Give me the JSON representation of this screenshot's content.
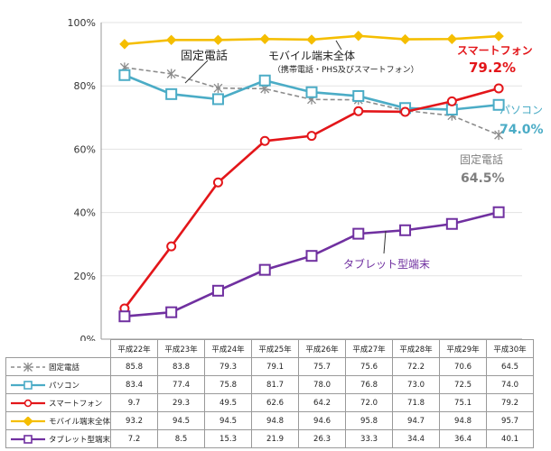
{
  "chart_data": {
    "type": "line",
    "categories": [
      "平成22年",
      "平成23年",
      "平成24年",
      "平成25年",
      "平成26年",
      "平成27年",
      "平成28年",
      "平成29年",
      "平成30年"
    ],
    "ylim": [
      0,
      100
    ],
    "yticks": [
      "0%",
      "20%",
      "40%",
      "60%",
      "80%",
      "100%"
    ],
    "grid": true,
    "series": [
      {
        "name": "固定電話",
        "color": "#8c8c8c",
        "marker": "asterisk",
        "dashed": true,
        "values": [
          85.8,
          83.8,
          79.3,
          79.1,
          75.7,
          75.6,
          72.2,
          70.6,
          64.5
        ]
      },
      {
        "name": "パソコン",
        "color": "#4bacc6",
        "marker": "square",
        "values": [
          83.4,
          77.4,
          75.8,
          81.7,
          78.0,
          76.8,
          73.0,
          72.5,
          74.0
        ]
      },
      {
        "name": "スマートフォン",
        "color": "#e3161a",
        "marker": "circle",
        "values": [
          9.7,
          29.3,
          49.5,
          62.6,
          64.2,
          72.0,
          71.8,
          75.1,
          79.2
        ]
      },
      {
        "name": "モバイル端末全体",
        "color": "#f5be00",
        "marker": "diamond",
        "values": [
          93.2,
          94.5,
          94.5,
          94.8,
          94.6,
          95.8,
          94.7,
          94.8,
          95.7
        ]
      },
      {
        "name": "タブレット型端末",
        "color": "#7030a0",
        "marker": "square",
        "values": [
          7.2,
          8.5,
          15.3,
          21.9,
          26.3,
          33.3,
          34.4,
          36.4,
          40.1
        ]
      }
    ],
    "annotations": {
      "landline_label": "固定電話",
      "mobile_label": "モバイル端末全体",
      "mobile_sublabel": "（携帯電話・PHS及びスマートフォン）",
      "smartphone_label": "スマートフォン",
      "smartphone_value": "79.2%",
      "pc_label": "パソコン",
      "pc_value": "74.0%",
      "landline_right_label": "固定電話",
      "landline_right_value": "64.5%",
      "tablet_label": "タブレット型端末"
    },
    "table": {
      "headers": [
        "平成22年",
        "平成23年",
        "平成24年",
        "平成25年",
        "平成26年",
        "平成27年",
        "平成28年",
        "平成29年",
        "平成30年"
      ],
      "rows": [
        {
          "label": "固定電話",
          "values": [
            "85.8",
            "83.8",
            "79.3",
            "79.1",
            "75.7",
            "75.6",
            "72.2",
            "70.6",
            "64.5"
          ]
        },
        {
          "label": "パソコン",
          "values": [
            "83.4",
            "77.4",
            "75.8",
            "81.7",
            "78.0",
            "76.8",
            "73.0",
            "72.5",
            "74.0"
          ]
        },
        {
          "label": "スマートフォン",
          "values": [
            "9.7",
            "29.3",
            "49.5",
            "62.6",
            "64.2",
            "72.0",
            "71.8",
            "75.1",
            "79.2"
          ]
        },
        {
          "label": "モバイル端末全体",
          "values": [
            "93.2",
            "94.5",
            "94.5",
            "94.8",
            "94.6",
            "95.8",
            "94.7",
            "94.8",
            "95.7"
          ]
        },
        {
          "label": "タブレット型端末",
          "values": [
            "7.2",
            "8.5",
            "15.3",
            "21.9",
            "26.3",
            "33.3",
            "34.4",
            "36.4",
            "40.1"
          ]
        }
      ]
    }
  }
}
